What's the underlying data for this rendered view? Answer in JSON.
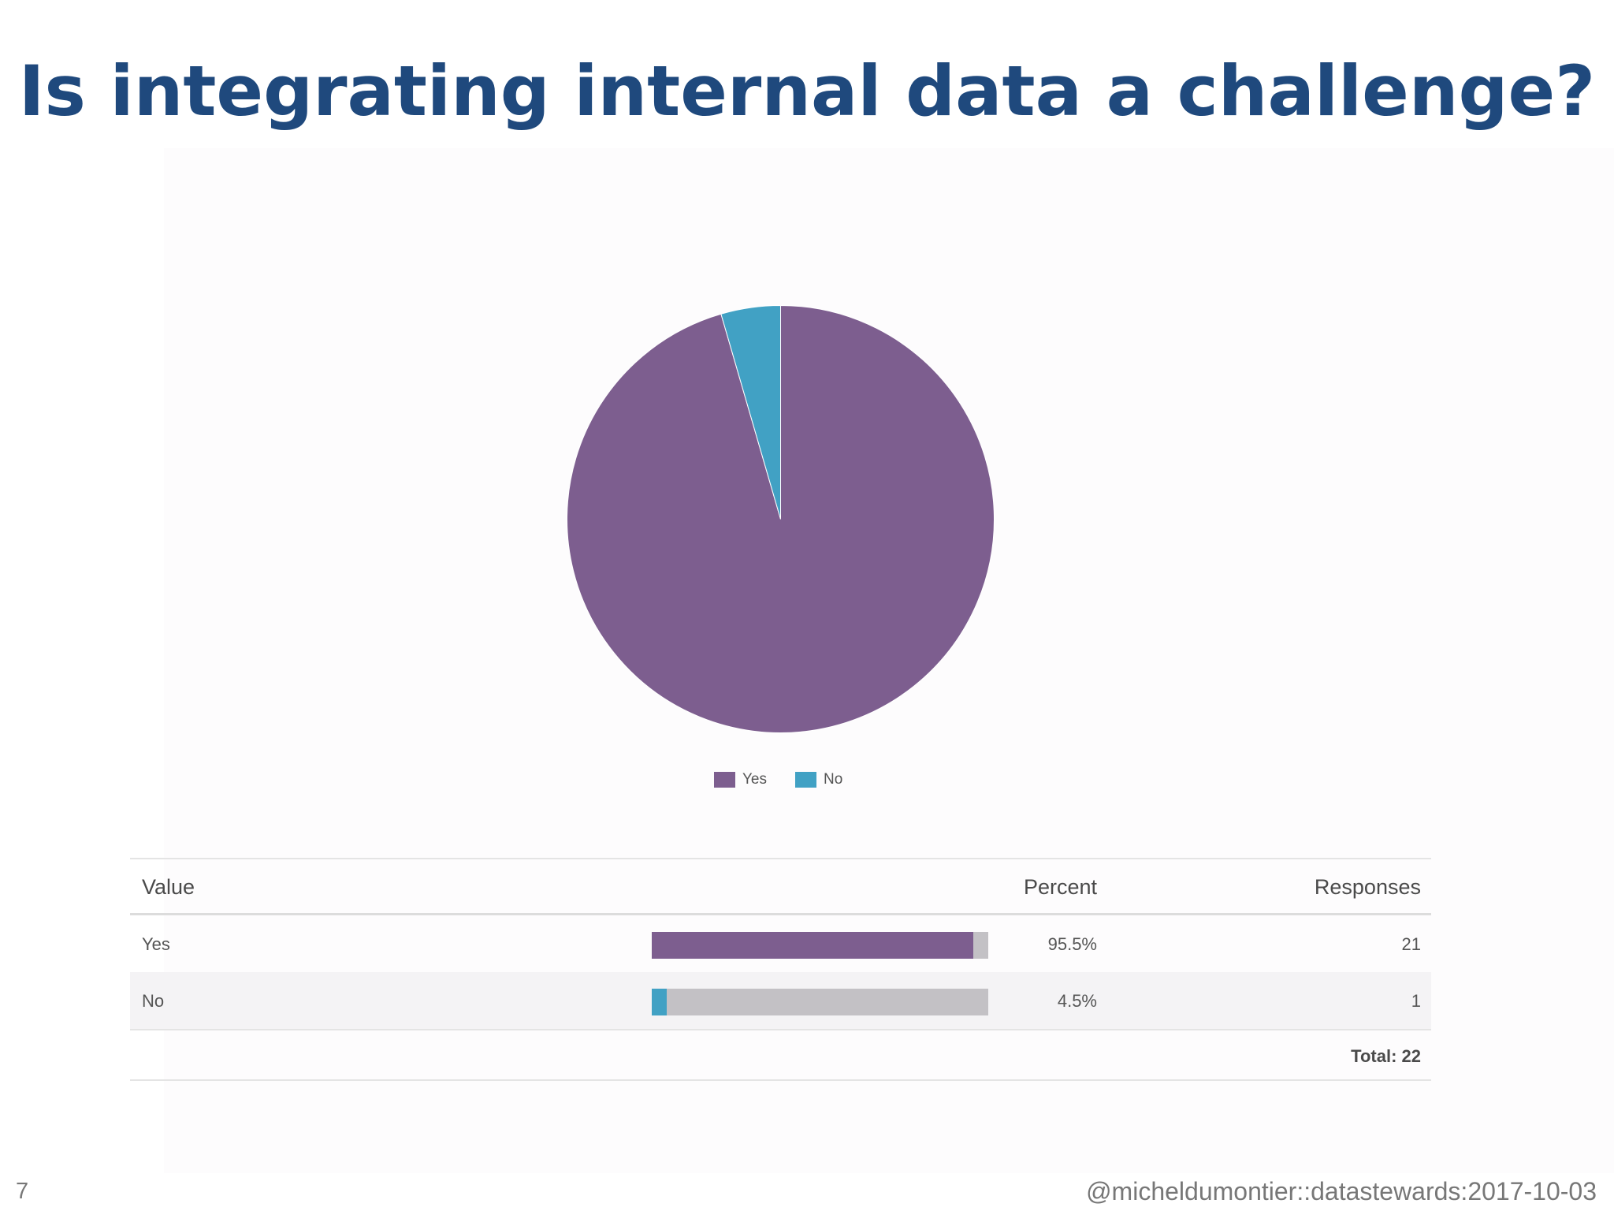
{
  "slide": {
    "title": "Is integrating internal data a challenge?",
    "number": "7",
    "footer": "@micheldumontier::datastewards:2017-10-03"
  },
  "chart_data": {
    "type": "pie",
    "categories": [
      "Yes",
      "No"
    ],
    "values": [
      95.5,
      4.5
    ],
    "colors": [
      "#7d5e8f",
      "#41a1c4"
    ],
    "legend_position": "bottom"
  },
  "table": {
    "headers": {
      "value": "Value",
      "percent": "Percent",
      "responses": "Responses"
    },
    "rows": [
      {
        "value": "Yes",
        "percent": "95.5%",
        "fraction": 0.955,
        "responses": "21",
        "color": "#7d5e8f"
      },
      {
        "value": "No",
        "percent": "4.5%",
        "fraction": 0.045,
        "responses": "1",
        "color": "#41a1c4"
      }
    ],
    "total": "Total: 22"
  }
}
